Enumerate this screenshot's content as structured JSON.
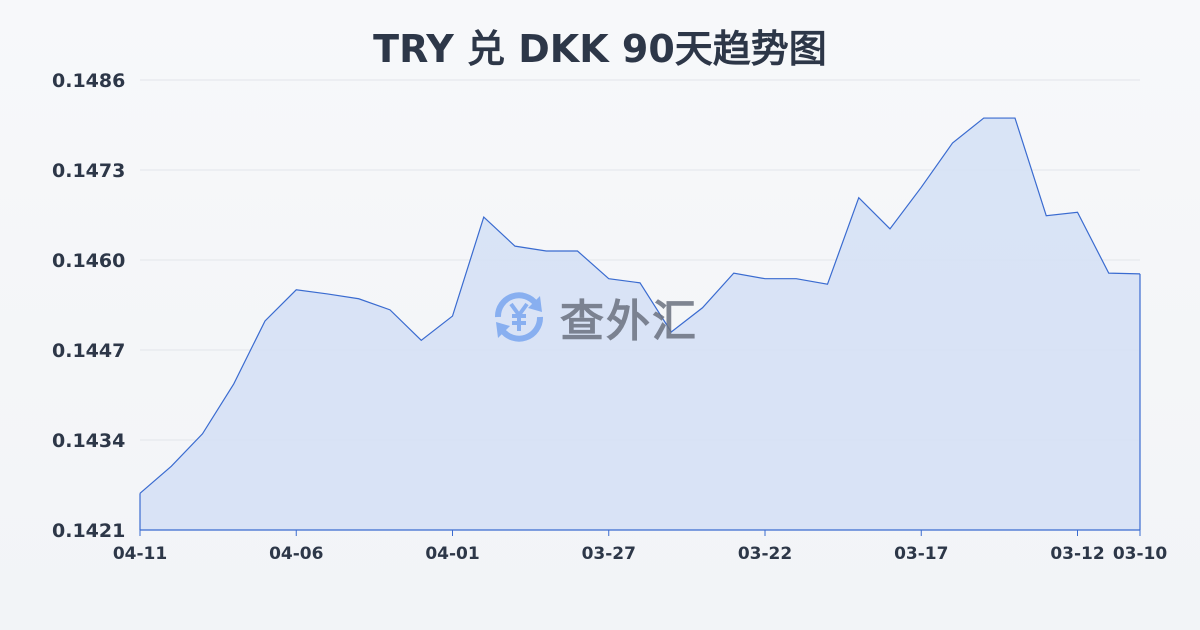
{
  "chart_data": {
    "type": "area",
    "title": "TRY 兑 DKK 90天趋势图",
    "xlabel": "",
    "ylabel": "",
    "ylim": [
      0.1421,
      0.1486
    ],
    "yticks": [
      "0.1486",
      "0.1473",
      "0.1460",
      "0.1447",
      "0.1434",
      "0.1421"
    ],
    "xticks": [
      "04-11",
      "04-06",
      "04-01",
      "03-27",
      "03-22",
      "03-17",
      "03-12",
      "03-10"
    ],
    "grid": true,
    "x": [
      "04-11",
      "04-10",
      "04-09",
      "04-08",
      "04-07",
      "04-06",
      "04-05",
      "04-04",
      "04-03",
      "04-02",
      "04-01",
      "03-31",
      "03-30",
      "03-29",
      "03-28",
      "03-27",
      "03-26",
      "03-25",
      "03-24",
      "03-23",
      "03-22",
      "03-21",
      "03-20",
      "03-19",
      "03-18",
      "03-17",
      "03-16",
      "03-15",
      "03-14",
      "03-13",
      "03-12",
      "03-11",
      "03-10"
    ],
    "values": [
      0.14263,
      0.14302,
      0.14349,
      0.14421,
      0.14512,
      0.14557,
      0.14551,
      0.14544,
      0.14528,
      0.14484,
      0.14519,
      0.14662,
      0.1462,
      0.14613,
      0.14613,
      0.14573,
      0.14567,
      0.14496,
      0.14531,
      0.14581,
      0.14573,
      0.14573,
      0.14565,
      0.1469,
      0.14645,
      0.14705,
      0.14769,
      0.14805,
      0.14805,
      0.14664,
      0.14669,
      0.14581,
      0.1458
    ],
    "colors": {
      "line": "#3a6bd0",
      "fill": "#d6e1f5",
      "grid": "#e2e5ea"
    }
  },
  "watermark": {
    "text": "查外汇",
    "icon": "yen-exchange-icon",
    "icon_color": "#7aa7f0"
  }
}
